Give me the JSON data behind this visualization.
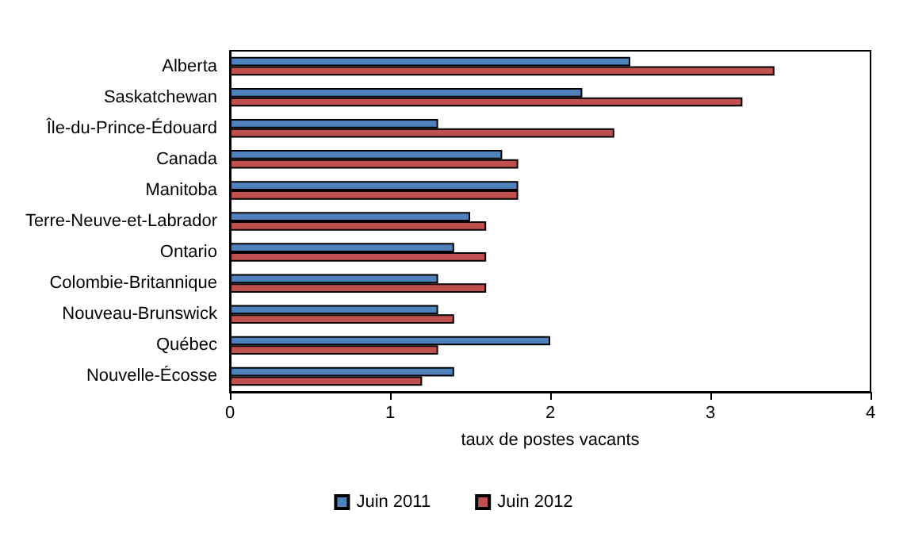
{
  "chart_data": {
    "type": "bar",
    "orientation": "horizontal",
    "xlabel": "taux de postes vacants",
    "categories": [
      "Alberta",
      "Saskatchewan",
      "Île-du-Prince-Édouard",
      "Canada",
      "Manitoba",
      "Terre-Neuve-et-Labrador",
      "Ontario",
      "Colombie-Britannique",
      "Nouveau-Brunswick",
      "Québec",
      "Nouvelle-Écosse"
    ],
    "series": [
      {
        "name": "Juin 2011",
        "color": "#4f81bd",
        "values": [
          2.5,
          2.2,
          1.3,
          1.7,
          1.8,
          1.5,
          1.4,
          1.3,
          1.3,
          2.0,
          1.4
        ]
      },
      {
        "name": "Juin 2012",
        "color": "#c0504d",
        "values": [
          3.4,
          3.2,
          2.4,
          1.8,
          1.8,
          1.6,
          1.6,
          1.6,
          1.4,
          1.3,
          1.2
        ]
      }
    ],
    "xlim": [
      0,
      4
    ],
    "xticks": [
      0,
      1,
      2,
      3,
      4
    ],
    "grid": false,
    "legend": "bottom"
  }
}
